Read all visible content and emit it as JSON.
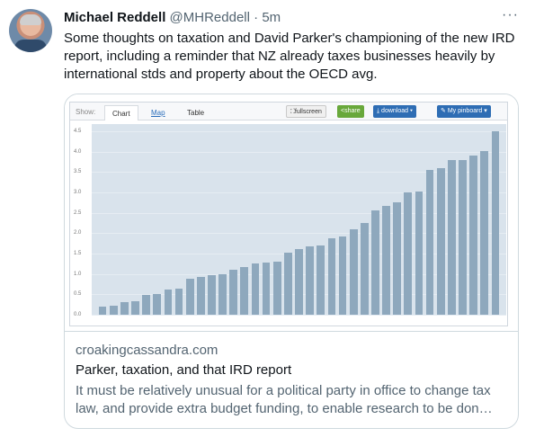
{
  "author": {
    "name": "Michael Reddell",
    "handle": "@MHReddell",
    "separator": "·",
    "time": "5m"
  },
  "more_label": "···",
  "tweet": {
    "text": "Some thoughts on taxation and David Parker's championing of the new IRD report, including a reminder that NZ already taxes businesses heavily by international stds and property about the OECD avg."
  },
  "card": {
    "domain": "croakingcassandra.com",
    "title": "Parker, taxation, and that IRD report",
    "description": "It must be relatively unusual for a political party in office to change tax law, and provide extra budget funding, to enable research to be don…",
    "toolbar": {
      "show_label": "Show:",
      "tabs": [
        "Chart",
        "Map",
        "Table"
      ],
      "fullscreen": "fullscreen",
      "share": "share",
      "download": "download ▾",
      "pinboard": "My pinboard ▾"
    },
    "chart_data": {
      "type": "bar",
      "title": "",
      "xlabel": "",
      "ylabel": "",
      "ylim": [
        0,
        4.5
      ],
      "y_ticks": [
        "4.5",
        "4.0",
        "3.5",
        "3.0",
        "2.5",
        "2.0",
        "1.5",
        "1.0",
        "0.5",
        "0.0"
      ],
      "values": [
        0.2,
        0.22,
        0.3,
        0.32,
        0.48,
        0.5,
        0.62,
        0.63,
        0.88,
        0.92,
        0.98,
        0.99,
        1.1,
        1.18,
        1.25,
        1.27,
        1.3,
        1.52,
        1.6,
        1.68,
        1.7,
        1.88,
        1.92,
        2.1,
        2.25,
        2.55,
        2.67,
        2.75,
        3.0,
        3.02,
        3.55,
        3.6,
        3.8,
        3.8,
        3.9,
        4.02,
        4.5
      ],
      "grid": true,
      "legend": "none"
    }
  }
}
